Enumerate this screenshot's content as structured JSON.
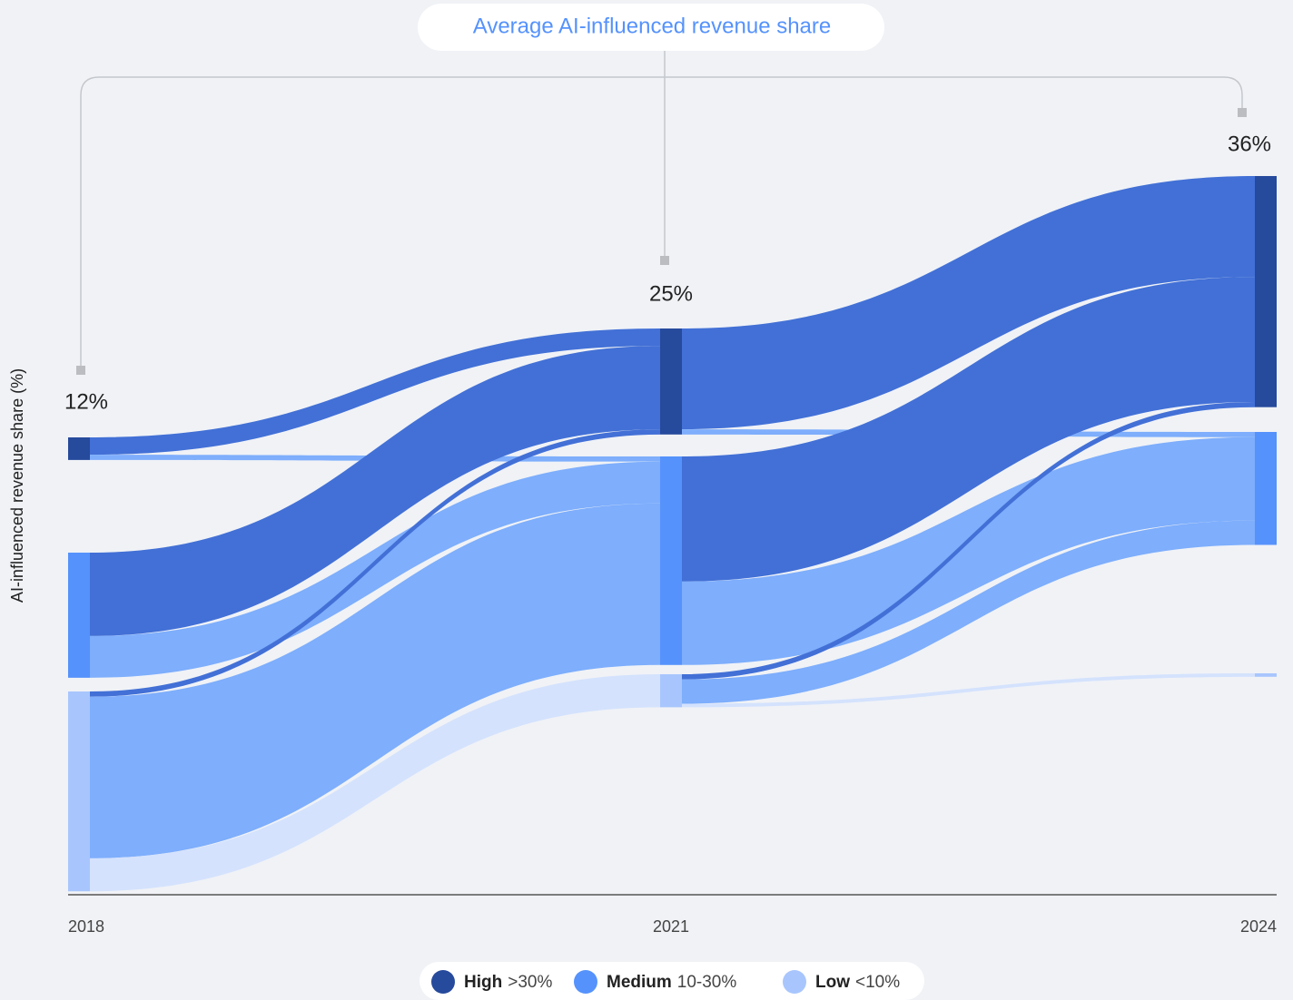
{
  "chart_data": {
    "type": "sankey",
    "title": "Average AI-influenced revenue share",
    "y_label": "AI-influenced revenue share (%)",
    "categories": [
      "2018",
      "2021",
      "2024"
    ],
    "nodes": [
      {
        "name": "High",
        "range": ">30%",
        "color": "#264a9c",
        "flow_color": "#4270d6"
      },
      {
        "name": "Medium",
        "range": "10-30%",
        "color": "#5592fc",
        "flow_color": "#7eaefc"
      },
      {
        "name": "Low",
        "range": "<10%",
        "color": "#a8c6fd",
        "flow_color": "#d4e2fd"
      }
    ],
    "flows": [
      [
        [
          5,
          1.5,
          0
        ],
        [
          24,
          12,
          0
        ],
        [
          1.5,
          46.5,
          9.5
        ]
      ],
      [
        [
          29,
          1.5,
          0
        ],
        [
          36,
          24,
          0
        ],
        [
          1.5,
          7,
          1
        ]
      ]
    ],
    "averages": {
      "values": [
        12,
        25,
        36
      ],
      "value_labels": [
        "12%",
        "25%",
        "36%"
      ]
    }
  }
}
